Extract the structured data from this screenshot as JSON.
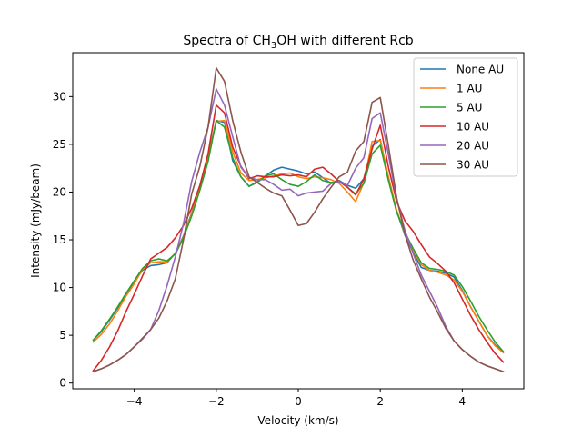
{
  "chart_data": {
    "type": "line",
    "title_main": "Spectra of CH",
    "title_sub1": "3",
    "title_mid": "OH",
    "title_end": " with different Rcb",
    "xlabel": "Velocity (km/s)",
    "ylabel": "Intensity (mJy/beam)",
    "xlim": [
      -5.5,
      5.5
    ],
    "ylim": [
      -0.6,
      34.6
    ],
    "xticks": [
      -4,
      -2,
      0,
      2,
      4
    ],
    "xtick_labels": [
      "−4",
      "−2",
      "0",
      "2",
      "4"
    ],
    "yticks": [
      0,
      5,
      10,
      15,
      20,
      25,
      30
    ],
    "ytick_labels": [
      "0",
      "5",
      "10",
      "15",
      "20",
      "25",
      "30"
    ],
    "grid": false,
    "legend_position": "top-right",
    "series": [
      {
        "name": "None AU",
        "color": "#1f77b4",
        "x": [
          -5.0,
          -4.8,
          -4.6,
          -4.4,
          -4.2,
          -4.0,
          -3.8,
          -3.6,
          -3.4,
          -3.2,
          -3.0,
          -2.8,
          -2.6,
          -2.4,
          -2.2,
          -2.0,
          -1.8,
          -1.6,
          -1.4,
          -1.2,
          -1.0,
          -0.8,
          -0.6,
          -0.4,
          -0.2,
          0.0,
          0.2,
          0.4,
          0.6,
          0.8,
          1.0,
          1.2,
          1.4,
          1.6,
          1.8,
          2.0,
          2.2,
          2.4,
          2.6,
          2.8,
          3.0,
          3.2,
          3.4,
          3.6,
          3.8,
          4.0,
          4.2,
          4.4,
          4.6,
          4.8,
          5.0
        ],
        "y": [
          4.5,
          5.4,
          6.6,
          7.9,
          9.3,
          10.6,
          11.8,
          12.3,
          12.4,
          12.6,
          13.6,
          15.4,
          17.8,
          20.5,
          23.7,
          27.5,
          27.3,
          23.3,
          21.6,
          20.6,
          21.1,
          21.7,
          22.3,
          22.6,
          22.4,
          22.2,
          21.9,
          22.1,
          21.5,
          20.9,
          21.2,
          20.7,
          20.4,
          21.4,
          24.8,
          25.5,
          21.4,
          18.0,
          15.5,
          13.7,
          12.1,
          11.8,
          11.7,
          11.5,
          11.1,
          9.7,
          8.0,
          6.5,
          5.0,
          4.0,
          3.2
        ]
      },
      {
        "name": "1 AU",
        "color": "#ff7f0e",
        "x": [
          -5.0,
          -4.8,
          -4.6,
          -4.4,
          -4.2,
          -4.0,
          -3.8,
          -3.6,
          -3.4,
          -3.2,
          -3.0,
          -2.8,
          -2.6,
          -2.4,
          -2.2,
          -2.0,
          -1.8,
          -1.6,
          -1.4,
          -1.2,
          -1.0,
          -0.8,
          -0.6,
          -0.4,
          -0.2,
          0.0,
          0.2,
          0.4,
          0.6,
          0.8,
          1.0,
          1.2,
          1.4,
          1.6,
          1.8,
          2.0,
          2.2,
          2.4,
          2.6,
          2.8,
          3.0,
          3.2,
          3.4,
          3.6,
          3.8,
          4.0,
          4.2,
          4.4,
          4.6,
          4.8,
          5.0
        ],
        "y": [
          4.3,
          5.1,
          6.2,
          7.6,
          9.1,
          10.4,
          11.9,
          12.6,
          12.7,
          12.7,
          13.6,
          15.3,
          17.7,
          20.4,
          23.6,
          27.4,
          27.5,
          24.2,
          22.0,
          21.2,
          21.3,
          21.5,
          21.7,
          21.9,
          22.0,
          21.6,
          21.4,
          21.6,
          21.5,
          21.3,
          20.9,
          20.0,
          19.0,
          21.0,
          25.3,
          25.4,
          21.6,
          18.1,
          15.6,
          13.9,
          12.4,
          11.8,
          11.6,
          11.3,
          10.8,
          9.6,
          8.0,
          6.5,
          5.0,
          3.9,
          3.2
        ]
      },
      {
        "name": "5 AU",
        "color": "#2ca02c",
        "x": [
          -5.0,
          -4.8,
          -4.6,
          -4.4,
          -4.2,
          -4.0,
          -3.8,
          -3.6,
          -3.4,
          -3.2,
          -3.0,
          -2.8,
          -2.6,
          -2.4,
          -2.2,
          -2.0,
          -1.8,
          -1.6,
          -1.4,
          -1.2,
          -1.0,
          -0.8,
          -0.6,
          -0.4,
          -0.2,
          0.0,
          0.2,
          0.4,
          0.6,
          0.8,
          1.0,
          1.2,
          1.4,
          1.6,
          1.8,
          2.0,
          2.2,
          2.4,
          2.6,
          2.8,
          3.0,
          3.2,
          3.4,
          3.6,
          3.8,
          4.0,
          4.2,
          4.4,
          4.6,
          4.8,
          5.0
        ],
        "y": [
          4.5,
          5.5,
          6.7,
          8.0,
          9.4,
          10.7,
          12.0,
          12.8,
          13.0,
          12.8,
          13.5,
          15.2,
          17.5,
          20.2,
          23.2,
          27.5,
          26.8,
          23.6,
          21.6,
          20.6,
          21.0,
          21.7,
          21.9,
          21.3,
          20.8,
          20.6,
          21.1,
          21.8,
          21.2,
          21.0,
          21.1,
          20.5,
          19.8,
          20.9,
          24.0,
          24.9,
          21.2,
          17.9,
          15.8,
          14.1,
          12.6,
          12.0,
          11.9,
          11.7,
          11.3,
          10.1,
          8.6,
          7.0,
          5.6,
          4.3,
          3.3
        ]
      },
      {
        "name": "10 AU",
        "color": "#d62728",
        "x": [
          -5.0,
          -4.8,
          -4.6,
          -4.4,
          -4.2,
          -4.0,
          -3.8,
          -3.6,
          -3.4,
          -3.2,
          -3.0,
          -2.8,
          -2.6,
          -2.4,
          -2.2,
          -2.0,
          -1.8,
          -1.6,
          -1.4,
          -1.2,
          -1.0,
          -0.8,
          -0.6,
          -0.4,
          -0.2,
          0.0,
          0.2,
          0.4,
          0.6,
          0.8,
          1.0,
          1.2,
          1.4,
          1.6,
          1.8,
          2.0,
          2.2,
          2.4,
          2.6,
          2.8,
          3.0,
          3.2,
          3.4,
          3.6,
          3.8,
          4.0,
          4.2,
          4.4,
          4.6,
          4.8,
          5.0
        ],
        "y": [
          1.3,
          2.4,
          3.8,
          5.5,
          7.5,
          9.3,
          11.2,
          13.0,
          13.6,
          14.2,
          15.2,
          16.5,
          18.3,
          20.7,
          24.0,
          29.1,
          28.3,
          24.7,
          22.7,
          21.4,
          21.7,
          21.6,
          21.6,
          21.8,
          21.7,
          21.8,
          21.6,
          22.4,
          22.6,
          21.9,
          21.1,
          20.5,
          19.7,
          21.4,
          24.5,
          27.0,
          22.6,
          19.0,
          17.0,
          15.9,
          14.5,
          13.2,
          12.5,
          11.7,
          10.5,
          8.8,
          7.1,
          5.6,
          4.3,
          3.1,
          2.2
        ]
      },
      {
        "name": "20 AU",
        "color": "#9467bd",
        "x": [
          -5.0,
          -4.8,
          -4.6,
          -4.4,
          -4.2,
          -4.0,
          -3.8,
          -3.6,
          -3.4,
          -3.2,
          -3.0,
          -2.8,
          -2.6,
          -2.4,
          -2.2,
          -2.0,
          -1.8,
          -1.6,
          -1.4,
          -1.2,
          -1.0,
          -0.8,
          -0.6,
          -0.4,
          -0.2,
          0.0,
          0.2,
          0.4,
          0.6,
          0.8,
          1.0,
          1.2,
          1.4,
          1.6,
          1.8,
          2.0,
          2.2,
          2.4,
          2.6,
          2.8,
          3.0,
          3.2,
          3.4,
          3.6,
          3.8,
          4.0,
          4.2,
          4.4,
          4.6,
          4.8,
          5.0
        ],
        "y": [
          1.2,
          1.5,
          1.9,
          2.4,
          3.0,
          3.8,
          4.6,
          5.6,
          7.6,
          10.2,
          13.2,
          16.7,
          21.1,
          24.2,
          26.8,
          30.8,
          29.1,
          25.8,
          22.6,
          21.5,
          21.3,
          21.3,
          20.8,
          20.2,
          20.3,
          19.6,
          19.9,
          20.0,
          20.1,
          20.9,
          21.1,
          20.7,
          22.5,
          23.6,
          27.7,
          28.3,
          23.9,
          19.3,
          16.0,
          13.6,
          11.3,
          9.6,
          7.9,
          5.9,
          4.4,
          3.5,
          2.8,
          2.2,
          1.8,
          1.5,
          1.2
        ]
      },
      {
        "name": "30 AU",
        "color": "#8c564b",
        "x": [
          -5.0,
          -4.8,
          -4.6,
          -4.4,
          -4.2,
          -4.0,
          -3.8,
          -3.6,
          -3.4,
          -3.2,
          -3.0,
          -2.8,
          -2.6,
          -2.4,
          -2.2,
          -2.0,
          -1.8,
          -1.6,
          -1.4,
          -1.2,
          -1.0,
          -0.8,
          -0.6,
          -0.4,
          -0.2,
          0.0,
          0.2,
          0.4,
          0.6,
          0.8,
          1.0,
          1.2,
          1.4,
          1.6,
          1.8,
          2.0,
          2.2,
          2.4,
          2.6,
          2.8,
          3.0,
          3.2,
          3.4,
          3.6,
          3.8,
          4.0,
          4.2,
          4.4,
          4.6,
          4.8,
          5.0
        ],
        "y": [
          1.2,
          1.5,
          1.9,
          2.4,
          3.0,
          3.8,
          4.7,
          5.6,
          6.8,
          8.6,
          10.9,
          15.0,
          19.8,
          22.7,
          26.8,
          33.0,
          31.6,
          27.5,
          24.2,
          21.6,
          21.0,
          20.4,
          19.9,
          19.6,
          18.1,
          16.5,
          16.7,
          17.9,
          19.3,
          20.5,
          21.6,
          22.1,
          24.3,
          25.3,
          29.4,
          29.9,
          24.8,
          19.4,
          15.6,
          12.9,
          10.9,
          9.0,
          7.4,
          5.7,
          4.4,
          3.5,
          2.8,
          2.2,
          1.8,
          1.5,
          1.2
        ]
      }
    ]
  }
}
